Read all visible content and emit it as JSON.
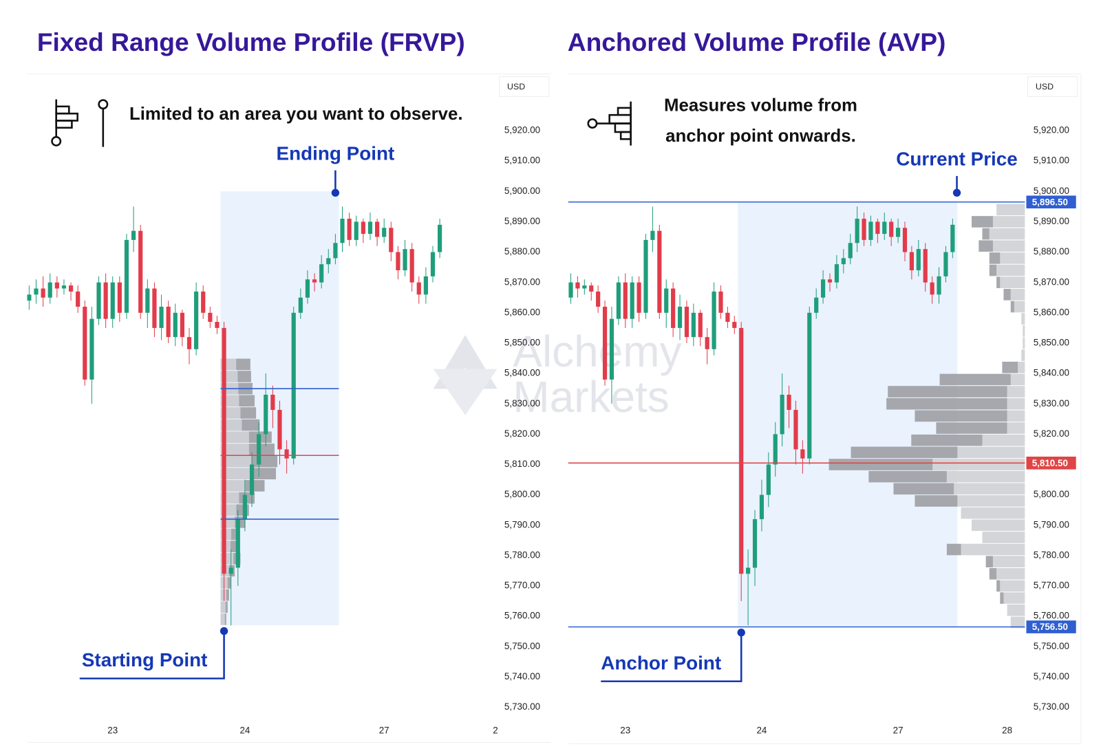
{
  "watermark": [
    "Alchemy",
    "Markets"
  ],
  "chart_data": [
    {
      "type": "candlestick",
      "title": "Fixed Range Volume Profile (FRVP)",
      "note": "Limited to an area you want to observe.",
      "currency": "USD",
      "categories": [
        null,
        null,
        null,
        null,
        null,
        null,
        null,
        null,
        null,
        null,
        null,
        null,
        "23",
        null,
        null,
        null,
        null,
        null,
        null,
        null,
        null,
        null,
        null,
        null,
        null,
        null,
        null,
        null,
        null,
        null,
        null,
        "24",
        null,
        null,
        null,
        null,
        null,
        null,
        null,
        null,
        null,
        null,
        null,
        null,
        null,
        null,
        null,
        null,
        null,
        null,
        null,
        "27",
        null,
        null,
        null,
        null,
        null,
        null,
        null,
        null,
        null,
        null,
        null,
        null,
        null,
        null,
        null,
        "2"
      ],
      "open": [
        5864,
        5866,
        5868,
        5865,
        5870,
        5868,
        5869,
        5867,
        5862,
        5838,
        5858,
        5870,
        5858,
        5870,
        5860,
        5884,
        5887,
        5860,
        5868,
        5855,
        5862,
        5852,
        5860,
        5852,
        5848,
        5867,
        5860,
        5857,
        5855,
        5774,
        5776,
        5792,
        5800,
        5810,
        5820,
        5833,
        5828,
        5815,
        5812,
        5860,
        5865,
        5871,
        5870,
        5876,
        5878,
        5883,
        5891,
        5884,
        5890,
        5886,
        5890,
        5885,
        5888,
        5880,
        5874,
        5881,
        5870,
        5866,
        5872,
        5880,
        null,
        null,
        null,
        null,
        null,
        null,
        null,
        null
      ],
      "high": [
        5869,
        5871,
        5872,
        5873,
        5872,
        5871,
        5870,
        5869,
        5864,
        5862,
        5872,
        5873,
        5872,
        5872,
        5886,
        5895,
        5889,
        5871,
        5870,
        5866,
        5864,
        5863,
        5861,
        5855,
        5870,
        5869,
        5862,
        5859,
        5857,
        5782,
        5795,
        5805,
        5814,
        5824,
        5840,
        5836,
        5831,
        5818,
        5862,
        5868,
        5874,
        5873,
        5879,
        5881,
        5886,
        5895,
        5893,
        5892,
        5891,
        5893,
        5891,
        5891,
        5890,
        5882,
        5884,
        5883,
        5872,
        5875,
        5882,
        5891,
        null,
        null,
        null,
        null,
        null,
        null,
        null,
        null
      ],
      "low": [
        5861,
        5863,
        5862,
        5863,
        5865,
        5866,
        5864,
        5860,
        5836,
        5830,
        5856,
        5855,
        5855,
        5857,
        5858,
        5880,
        5858,
        5855,
        5852,
        5851,
        5850,
        5849,
        5849,
        5843,
        5846,
        5858,
        5855,
        5853,
        5765,
        5757,
        5770,
        5788,
        5796,
        5806,
        5816,
        5822,
        5810,
        5807,
        5810,
        5858,
        5863,
        5867,
        5868,
        5873,
        5876,
        5880,
        5882,
        5882,
        5883,
        5884,
        5882,
        5883,
        5877,
        5871,
        5872,
        5867,
        5863,
        5863,
        5870,
        5878,
        null,
        null,
        null,
        null,
        null,
        null,
        null,
        null
      ],
      "close": [
        5866,
        5868,
        5865,
        5870,
        5868,
        5869,
        5867,
        5862,
        5838,
        5858,
        5870,
        5858,
        5870,
        5860,
        5884,
        5887,
        5860,
        5868,
        5855,
        5862,
        5852,
        5860,
        5852,
        5848,
        5867,
        5860,
        5857,
        5855,
        5774,
        5776,
        5792,
        5800,
        5810,
        5820,
        5833,
        5828,
        5815,
        5812,
        5860,
        5865,
        5871,
        5870,
        5876,
        5878,
        5883,
        5891,
        5884,
        5890,
        5886,
        5890,
        5885,
        5888,
        5880,
        5874,
        5881,
        5870,
        5866,
        5872,
        5880,
        5889,
        null,
        null,
        null,
        null,
        null,
        null,
        null,
        null
      ],
      "colors": {
        "up": "#1f9e7b",
        "down": "#e23b4a"
      },
      "ylim": [
        5725,
        5935
      ],
      "yticks": [
        {
          "value": 5920,
          "label": "5,920.00"
        },
        {
          "value": 5910,
          "label": "5,910.00"
        },
        {
          "value": 5900,
          "label": "5,900.00"
        },
        {
          "value": 5890,
          "label": "5,890.00"
        },
        {
          "value": 5880,
          "label": "5,880.00"
        },
        {
          "value": 5870,
          "label": "5,870.00"
        },
        {
          "value": 5860,
          "label": "5,860.00"
        },
        {
          "value": 5850,
          "label": "5,850.00"
        },
        {
          "value": 5840,
          "label": "5,840.00"
        },
        {
          "value": 5830,
          "label": "5,830.00"
        },
        {
          "value": 5820,
          "label": "5,820.00"
        },
        {
          "value": 5810,
          "label": "5,810.00"
        },
        {
          "value": 5800,
          "label": "5,800.00"
        },
        {
          "value": 5790,
          "label": "5,790.00"
        },
        {
          "value": 5780,
          "label": "5,780.00"
        },
        {
          "value": 5770,
          "label": "5,770.00"
        },
        {
          "value": 5760,
          "label": "5,760.00"
        },
        {
          "value": 5750,
          "label": "5,750.00"
        },
        {
          "value": 5740,
          "label": "5,740.00"
        },
        {
          "value": 5730,
          "label": "5,730.00"
        }
      ],
      "range": {
        "from": 28,
        "to": 44,
        "low": 5757,
        "high": 5900,
        "color": "#eaf2fd",
        "start_label": "Starting Point",
        "end_label": "Ending Point"
      },
      "levels": [
        {
          "value": 5835,
          "color": "#2f5fd0"
        },
        {
          "value": 5813,
          "color": "#e04545"
        },
        {
          "value": 5792,
          "color": "#2f5fd0"
        }
      ],
      "profile": {
        "anchor": "left",
        "bins": [
          5757,
          5761,
          5765,
          5769,
          5773,
          5777,
          5781,
          5785,
          5789,
          5793,
          5797,
          5801,
          5805,
          5809,
          5813,
          5817,
          5821,
          5825,
          5829,
          5833,
          5837,
          5841,
          5845
        ],
        "series": [
          {
            "color": "#c9cacf",
            "values": [
              6,
              7,
              8,
              10,
              12,
              18,
              14,
              15,
              20,
              22,
              26,
              35,
              42,
              44,
              40,
              40,
              30,
              28,
              26,
              25,
              24,
              22
            ]
          },
          {
            "color": "#9d9ea4",
            "values": [
              2,
              3,
              4,
              5,
              8,
              10,
              8,
              10,
              15,
              18,
              22,
              27,
              36,
              36,
              36,
              32,
              25,
              22,
              22,
              20,
              19,
              20
            ]
          }
        ]
      }
    },
    {
      "type": "candlestick",
      "title": "Anchored Volume Profile (AVP)",
      "note": [
        "Measures volume from",
        "anchor point onwards."
      ],
      "currency": "USD",
      "categories": [
        null,
        null,
        null,
        null,
        null,
        null,
        null,
        null,
        null,
        null,
        null,
        "23",
        null,
        null,
        null,
        null,
        null,
        null,
        null,
        null,
        null,
        null,
        null,
        null,
        null,
        null,
        null,
        null,
        null,
        null,
        null,
        "24",
        null,
        null,
        null,
        null,
        null,
        null,
        null,
        null,
        null,
        null,
        null,
        null,
        null,
        null,
        null,
        null,
        null,
        null,
        null,
        "27",
        null,
        null,
        null,
        null,
        null,
        null,
        null,
        null,
        null,
        null,
        null,
        null,
        null,
        null,
        null,
        "28"
      ],
      "open": [
        5864,
        5866,
        5868,
        5865,
        5870,
        5868,
        5869,
        5867,
        5862,
        5838,
        5858,
        5870,
        5858,
        5870,
        5860,
        5884,
        5887,
        5860,
        5868,
        5855,
        5862,
        5852,
        5860,
        5852,
        5848,
        5867,
        5860,
        5857,
        5855,
        5774,
        5776,
        5792,
        5800,
        5810,
        5820,
        5833,
        5828,
        5815,
        5812,
        5860,
        5865,
        5871,
        5870,
        5876,
        5878,
        5883,
        5891,
        5884,
        5890,
        5886,
        5890,
        5885,
        5888,
        5880,
        5874,
        5881,
        5870,
        5866,
        5872,
        5880,
        null,
        null,
        null,
        null,
        null,
        null,
        null,
        null
      ],
      "high": [
        5869,
        5871,
        5872,
        5873,
        5872,
        5871,
        5870,
        5869,
        5864,
        5862,
        5872,
        5873,
        5872,
        5872,
        5886,
        5895,
        5889,
        5871,
        5870,
        5866,
        5864,
        5863,
        5861,
        5855,
        5870,
        5869,
        5862,
        5859,
        5857,
        5782,
        5795,
        5805,
        5814,
        5824,
        5840,
        5836,
        5831,
        5818,
        5862,
        5868,
        5874,
        5873,
        5879,
        5881,
        5886,
        5895,
        5893,
        5892,
        5891,
        5893,
        5891,
        5891,
        5890,
        5882,
        5884,
        5883,
        5872,
        5875,
        5882,
        5891,
        null,
        null,
        null,
        null,
        null,
        null,
        null,
        null
      ],
      "low": [
        5861,
        5863,
        5862,
        5863,
        5865,
        5866,
        5864,
        5860,
        5836,
        5830,
        5856,
        5855,
        5855,
        5857,
        5858,
        5880,
        5858,
        5855,
        5852,
        5851,
        5850,
        5849,
        5849,
        5843,
        5846,
        5858,
        5855,
        5853,
        5765,
        5757,
        5770,
        5788,
        5796,
        5806,
        5816,
        5822,
        5810,
        5807,
        5810,
        5858,
        5863,
        5867,
        5868,
        5873,
        5876,
        5880,
        5882,
        5882,
        5883,
        5884,
        5882,
        5883,
        5877,
        5871,
        5872,
        5867,
        5863,
        5863,
        5870,
        5878,
        null,
        null,
        null,
        null,
        null,
        null,
        null,
        null
      ],
      "close": [
        5866,
        5868,
        5865,
        5870,
        5868,
        5869,
        5867,
        5862,
        5838,
        5858,
        5870,
        5858,
        5870,
        5860,
        5884,
        5887,
        5860,
        5868,
        5855,
        5862,
        5852,
        5860,
        5852,
        5848,
        5867,
        5860,
        5857,
        5855,
        5774,
        5776,
        5792,
        5800,
        5810,
        5820,
        5833,
        5828,
        5815,
        5812,
        5860,
        5865,
        5871,
        5870,
        5876,
        5878,
        5883,
        5891,
        5884,
        5890,
        5886,
        5890,
        5885,
        5888,
        5880,
        5874,
        5881,
        5870,
        5866,
        5872,
        5880,
        5889,
        null,
        null,
        null,
        null,
        null,
        null,
        null,
        null
      ],
      "colors": {
        "up": "#1f9e7b",
        "down": "#e23b4a"
      },
      "ylim": [
        5725,
        5935
      ],
      "yticks": [
        {
          "value": 5920,
          "label": "5,920.00"
        },
        {
          "value": 5910,
          "label": "5,910.00"
        },
        {
          "value": 5900,
          "label": "5,900.00"
        },
        {
          "value": 5890,
          "label": "5,890.00"
        },
        {
          "value": 5880,
          "label": "5,880.00"
        },
        {
          "value": 5870,
          "label": "5,870.00"
        },
        {
          "value": 5860,
          "label": "5,860.00"
        },
        {
          "value": 5850,
          "label": "5,850.00"
        },
        {
          "value": 5840,
          "label": "5,840.00"
        },
        {
          "value": 5830,
          "label": "5,830.00"
        },
        {
          "value": 5820,
          "label": "5,820.00"
        },
        {
          "value": 5810,
          "label": "5,810.00"
        },
        {
          "value": 5800,
          "label": "5,800.00"
        },
        {
          "value": 5790,
          "label": "5,790.00"
        },
        {
          "value": 5780,
          "label": "5,780.00"
        },
        {
          "value": 5770,
          "label": "5,770.00"
        },
        {
          "value": 5760,
          "label": "5,760.00"
        },
        {
          "value": 5750,
          "label": "5,750.00"
        },
        {
          "value": 5740,
          "label": "5,740.00"
        },
        {
          "value": 5730,
          "label": "5,730.00"
        }
      ],
      "anchor": {
        "index": 28,
        "value": 5756.5,
        "label": "Anchor Point",
        "color": "#eaf2fd"
      },
      "current": {
        "value": 5896.5,
        "label": "Current Price"
      },
      "price_labels": [
        {
          "value": 5896.5,
          "label": "5,896.50",
          "color": "#2f5fd0"
        },
        {
          "value": 5810.5,
          "label": "5,810.50",
          "color": "#e04545"
        },
        {
          "value": 5756.5,
          "label": "5,756.50",
          "color": "#2f5fd0"
        }
      ],
      "profile": {
        "anchor": "right",
        "bins": [
          5756,
          5760,
          5764,
          5768,
          5772,
          5776,
          5780,
          5784,
          5788,
          5792,
          5796,
          5800,
          5804,
          5808,
          5812,
          5816,
          5820,
          5824,
          5828,
          5832,
          5836,
          5840,
          5844,
          5848,
          5852,
          5856,
          5860,
          5864,
          5868,
          5872,
          5876,
          5880,
          5884,
          5888,
          5892,
          5896
        ],
        "series": [
          {
            "color": "#cfd0d4",
            "values": [
              20,
              25,
              30,
              35,
              40,
              45,
              90,
              60,
              75,
              90,
              95,
              100,
              110,
              130,
              95,
              60,
              25,
              25,
              25,
              25,
              20,
              10,
              5,
              3,
              3,
              5,
              15,
              20,
              35,
              40,
              35,
              45,
              50,
              45,
              40
            ]
          },
          {
            "color": "#9d9ea4",
            "values": [
              0,
              0,
              5,
              5,
              10,
              10,
              20,
              0,
              0,
              0,
              60,
              85,
              110,
              146,
              150,
              100,
              100,
              130,
              170,
              168,
              100,
              22,
              0,
              0,
              0,
              0,
              5,
              10,
              5,
              10,
              15,
              20,
              10,
              30,
              0
            ]
          }
        ]
      }
    }
  ]
}
